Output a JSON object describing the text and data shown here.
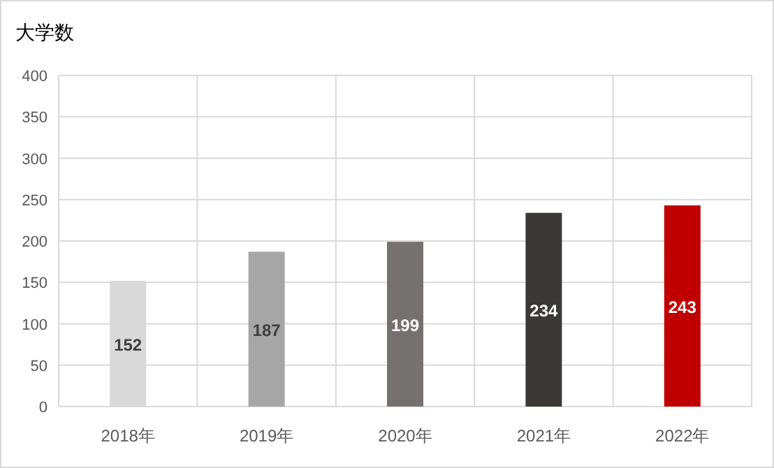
{
  "chart_data": {
    "type": "bar",
    "title": "大学数",
    "categories": [
      "2018年",
      "2019年",
      "2020年",
      "2021年",
      "2022年"
    ],
    "values": [
      152,
      187,
      199,
      234,
      243
    ],
    "colors": [
      "#d9d9d9",
      "#a6a6a6",
      "#767171",
      "#3b3838",
      "#c00000"
    ],
    "ylim": [
      0,
      400
    ],
    "yticks": [
      0,
      50,
      100,
      150,
      200,
      250,
      300,
      350,
      400
    ],
    "grid": true,
    "data_labels": true
  }
}
